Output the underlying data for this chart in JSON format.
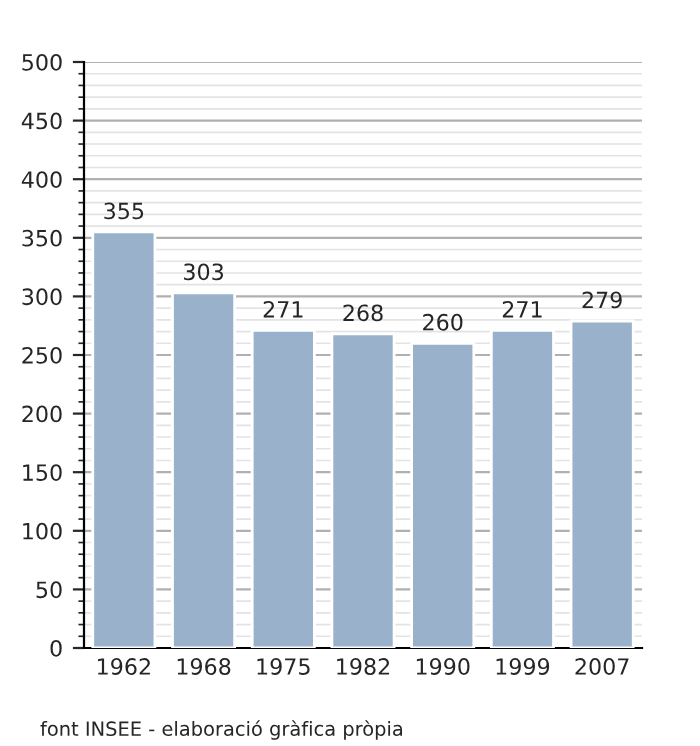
{
  "chart_data": {
    "type": "bar",
    "categories": [
      "1962",
      "1968",
      "1975",
      "1982",
      "1990",
      "1999",
      "2007"
    ],
    "values": [
      355,
      303,
      271,
      268,
      260,
      271,
      279
    ],
    "color": "#99b1cb",
    "data_labels": true,
    "ylim": [
      0,
      500
    ],
    "yticks": [
      0,
      50,
      100,
      150,
      200,
      250,
      300,
      350,
      400,
      450,
      500
    ],
    "grid": "y",
    "annotations": [
      "font INSEE - elaboració gràfica pròpia"
    ]
  }
}
